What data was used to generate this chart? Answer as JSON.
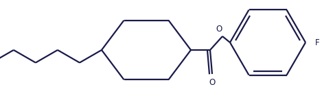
{
  "line_color": "#1a1a4a",
  "line_width": 1.6,
  "bg_color": "#ffffff",
  "figsize": [
    4.69,
    1.46
  ],
  "dpi": 100,
  "F_label": "F",
  "O_label": "O",
  "font_size": 8.5
}
